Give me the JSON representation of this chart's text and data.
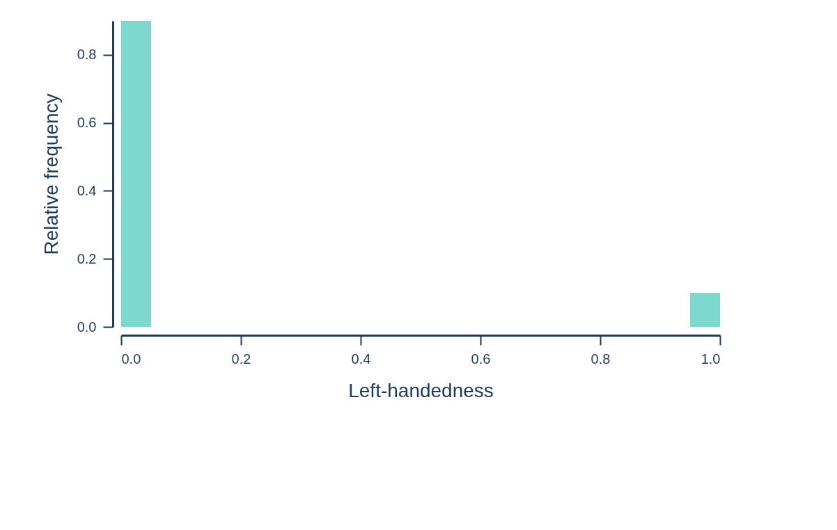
{
  "chart_data": {
    "type": "histogram",
    "xlabel": "Left-handedness",
    "ylabel": "Relative frequency",
    "bins": [
      0.0,
      0.05,
      0.1,
      0.15,
      0.2,
      0.25,
      0.3,
      0.35,
      0.4,
      0.45,
      0.5,
      0.55,
      0.6,
      0.65,
      0.7,
      0.75,
      0.8,
      0.85,
      0.9,
      0.95,
      1.0
    ],
    "values": [
      0.9,
      0,
      0,
      0,
      0,
      0,
      0,
      0,
      0,
      0,
      0,
      0,
      0,
      0,
      0,
      0,
      0,
      0,
      0,
      0.1
    ],
    "color": "#7dd9cf",
    "xlim": [
      0.0,
      1.0
    ],
    "xticks": [
      {
        "value": 0,
        "label": "0.0"
      },
      0.2,
      0.4,
      0.6,
      0.8,
      {
        "value": 1,
        "label": "1.0"
      }
    ],
    "ylim": [
      0.0,
      0.9
    ],
    "yticks": [
      {
        "value": 0,
        "label": "0.0"
      },
      0.2,
      0.4,
      0.6,
      0.8
    ],
    "grid": false
  }
}
